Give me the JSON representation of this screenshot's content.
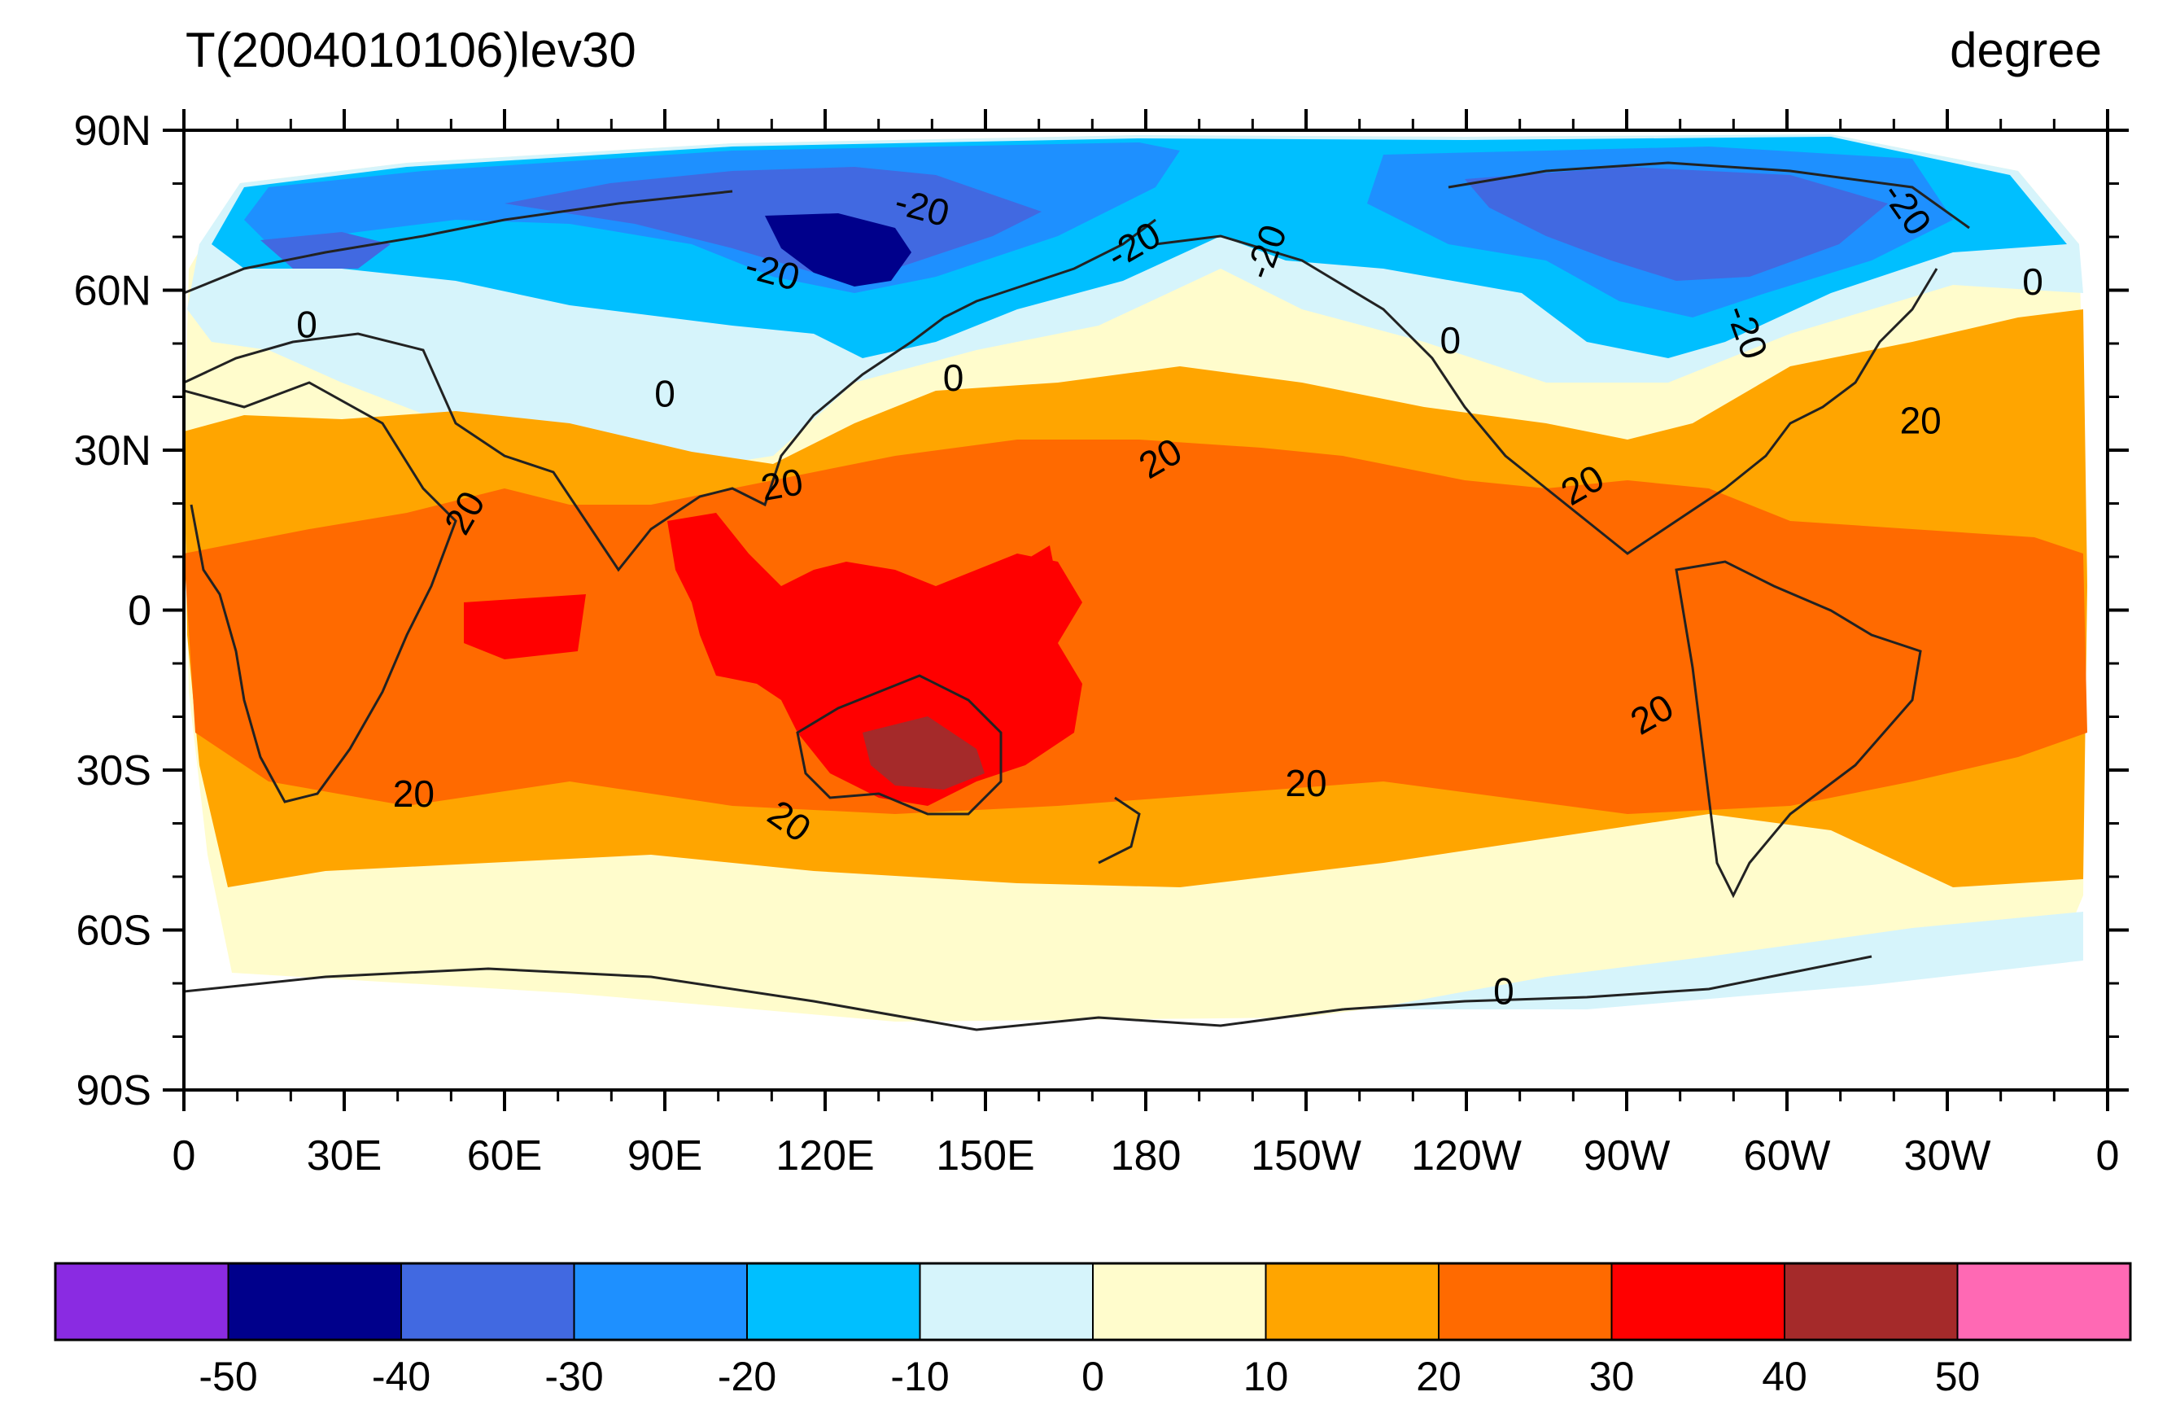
{
  "title": "T(2004010106)lev30",
  "units": "degree",
  "map": {
    "projection": "cylindrical-equidistant",
    "lon_range": [
      0,
      360
    ],
    "lat_range": [
      -90,
      90
    ],
    "lon_ticks": [
      0,
      30,
      60,
      90,
      120,
      150,
      180,
      210,
      240,
      270,
      300,
      330,
      360
    ],
    "lon_tick_labels": [
      "0",
      "30E",
      "60E",
      "90E",
      "120E",
      "150E",
      "180",
      "150W",
      "120W",
      "90W",
      "60W",
      "30W",
      "0"
    ],
    "lat_ticks": [
      90,
      60,
      30,
      0,
      -30,
      -60,
      -90
    ],
    "lat_tick_labels": [
      "90N",
      "60N",
      "30N",
      "0",
      "30S",
      "60S",
      "90S"
    ],
    "coastlines": true,
    "grid": false
  },
  "colorbar": {
    "orientation": "horizontal",
    "levels": [
      -50,
      -40,
      -30,
      -20,
      -10,
      0,
      10,
      20,
      30,
      40,
      50
    ],
    "level_labels": [
      "-50",
      "-40",
      "-30",
      "-20",
      "-10",
      "0",
      "10",
      "20",
      "30",
      "40",
      "50"
    ],
    "colors": [
      "#8a2be2",
      "#00008b",
      "#4169e1",
      "#1e90ff",
      "#00bfff",
      "#d6f4fb",
      "#fffccc",
      "#ffa500",
      "#ff6a00",
      "#ff0000",
      "#a52a2a",
      "#ff69b4"
    ]
  },
  "contour_labels": [
    {
      "text": "-20",
      "lon": 138,
      "lat": 75,
      "rotation": 15
    },
    {
      "text": "-20",
      "lon": 110,
      "lat": 63,
      "rotation": 15
    },
    {
      "text": "-20",
      "lon": 178,
      "lat": 68,
      "rotation": -30
    },
    {
      "text": "-20",
      "lon": 203,
      "lat": 67,
      "rotation": -70
    },
    {
      "text": "-20",
      "lon": 322,
      "lat": 75,
      "rotation": 55
    },
    {
      "text": "-20",
      "lon": 292,
      "lat": 52,
      "rotation": 70
    },
    {
      "text": "0",
      "lon": 23,
      "lat": 53,
      "rotation": 0
    },
    {
      "text": "0",
      "lon": 90,
      "lat": 40,
      "rotation": 0
    },
    {
      "text": "0",
      "lon": 144,
      "lat": 43,
      "rotation": 0
    },
    {
      "text": "0",
      "lon": 237,
      "lat": 50,
      "rotation": 0
    },
    {
      "text": "0",
      "lon": 346,
      "lat": 61,
      "rotation": 0
    },
    {
      "text": "0",
      "lon": 247,
      "lat": -72,
      "rotation": 0
    },
    {
      "text": "20",
      "lon": 53,
      "lat": 18,
      "rotation": -60
    },
    {
      "text": "20",
      "lon": 112,
      "lat": 23,
      "rotation": -10
    },
    {
      "text": "20",
      "lon": 183,
      "lat": 28,
      "rotation": -30
    },
    {
      "text": "20",
      "lon": 262,
      "lat": 23,
      "rotation": -30
    },
    {
      "text": "20",
      "lon": 325,
      "lat": 35,
      "rotation": 0
    },
    {
      "text": "20",
      "lon": 43,
      "lat": -35,
      "rotation": 0
    },
    {
      "text": "20",
      "lon": 113,
      "lat": -40,
      "rotation": 35
    },
    {
      "text": "20",
      "lon": 210,
      "lat": -33,
      "rotation": 0
    },
    {
      "text": "20",
      "lon": 275,
      "lat": -20,
      "rotation": -30
    }
  ]
}
